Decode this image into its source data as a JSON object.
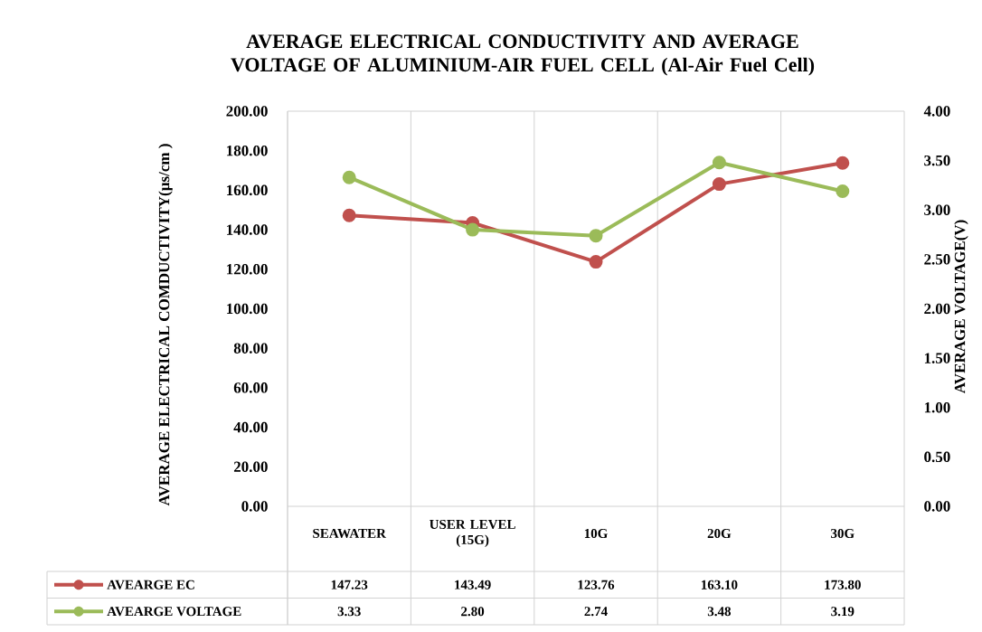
{
  "chart_data": {
    "type": "line",
    "title": "AVERAGE ELECTRICAL CONDUCTIVITY AND AVERAGE VOLTAGE OF ALUMINIUM-AIR FUEL CELL (Al-Air Fuel Cell)",
    "ylabel": "AVERAGE ELECTRICAL COMDUCTIVITY(µs/cm )",
    "y2label": "AVERAGE VOLTAGE(V)",
    "categories": [
      "SEAWATER",
      "USER LEVEL (15G)",
      "10G",
      "20G",
      "30G"
    ],
    "series": [
      {
        "name": "AVEARGE EC",
        "color": "#c0504d",
        "values": [
          147.23,
          143.49,
          123.76,
          163.1,
          173.8
        ],
        "value_labels": [
          "147.23",
          "143.49",
          "123.76",
          "163.10",
          "173.80"
        ]
      },
      {
        "name": "AVEARGE VOLTAGE",
        "color": "#9bbb59",
        "values": [
          3.33,
          2.8,
          2.74,
          3.48,
          3.19
        ],
        "value_labels": [
          "3.33",
          "2.80",
          "2.74",
          "3.48",
          "3.19"
        ],
        "axis": "y2"
      }
    ],
    "ylim": [
      0,
      200
    ],
    "yticks": [
      {
        "value": 0,
        "label": "0.00"
      },
      {
        "value": 20,
        "label": "20.00"
      },
      {
        "value": 40,
        "label": "40.00"
      },
      {
        "value": 60,
        "label": "60.00"
      },
      {
        "value": 80,
        "label": "80.00"
      },
      {
        "value": 100,
        "label": "100.00"
      },
      {
        "value": 120,
        "label": "120.00"
      },
      {
        "value": 140,
        "label": "140.00"
      },
      {
        "value": 160,
        "label": "160.00"
      },
      {
        "value": 180,
        "label": "180.00"
      },
      {
        "value": 200,
        "label": "200.00"
      }
    ],
    "y2lim": [
      0,
      4
    ],
    "y2ticks": [
      {
        "value": 0,
        "label": "0.00"
      },
      {
        "value": 0.5,
        "label": "0.50"
      },
      {
        "value": 1,
        "label": "1.00"
      },
      {
        "value": 1.5,
        "label": "1.50"
      },
      {
        "value": 2,
        "label": "2.00"
      },
      {
        "value": 2.5,
        "label": "2.50"
      },
      {
        "value": 3,
        "label": "3.00"
      },
      {
        "value": 3.5,
        "label": "3.50"
      },
      {
        "value": 4,
        "label": "4.00"
      }
    ],
    "grid": "x",
    "legend": "bottom left",
    "marker": "circle",
    "line_style": "solid"
  }
}
